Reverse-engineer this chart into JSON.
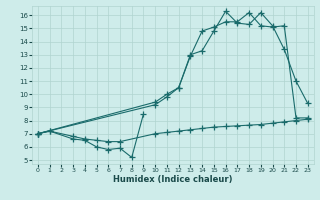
{
  "xlabel": "Humidex (Indice chaleur)",
  "bg_color": "#ceecea",
  "grid_color": "#b0d4d0",
  "line_color": "#1a6b6b",
  "xlim": [
    -0.5,
    23.5
  ],
  "ylim": [
    4.7,
    16.7
  ],
  "yticks": [
    5,
    6,
    7,
    8,
    9,
    10,
    11,
    12,
    13,
    14,
    15,
    16
  ],
  "xticks": [
    0,
    1,
    2,
    3,
    4,
    5,
    6,
    7,
    8,
    9,
    10,
    11,
    12,
    13,
    14,
    15,
    16,
    17,
    18,
    19,
    20,
    21,
    22,
    23
  ],
  "series": [
    [
      0,
      7.0
    ],
    [
      1,
      7.2
    ],
    [
      3,
      6.6
    ],
    [
      4,
      6.5
    ],
    [
      5,
      6.0
    ],
    [
      6,
      5.8
    ],
    [
      7,
      5.9
    ],
    [
      8,
      5.2
    ],
    [
      9,
      8.5
    ]
  ],
  "series2": [
    [
      0,
      7.0
    ],
    [
      1,
      7.2
    ],
    [
      3,
      6.8
    ],
    [
      4,
      6.6
    ],
    [
      5,
      6.5
    ],
    [
      6,
      6.4
    ],
    [
      7,
      6.4
    ],
    [
      10,
      7.0
    ],
    [
      11,
      7.1
    ],
    [
      12,
      7.2
    ],
    [
      13,
      7.3
    ],
    [
      14,
      7.4
    ],
    [
      15,
      7.5
    ],
    [
      16,
      7.55
    ],
    [
      17,
      7.6
    ],
    [
      18,
      7.65
    ],
    [
      19,
      7.7
    ],
    [
      20,
      7.8
    ],
    [
      21,
      7.9
    ],
    [
      22,
      8.0
    ],
    [
      23,
      8.1
    ]
  ],
  "series3": [
    [
      0,
      7.0
    ],
    [
      10,
      9.2
    ],
    [
      11,
      9.8
    ],
    [
      12,
      10.5
    ],
    [
      13,
      13.0
    ],
    [
      14,
      13.3
    ],
    [
      15,
      14.8
    ],
    [
      16,
      16.3
    ],
    [
      17,
      15.4
    ],
    [
      18,
      15.3
    ],
    [
      19,
      16.2
    ],
    [
      20,
      15.2
    ],
    [
      21,
      13.4
    ],
    [
      22,
      11.0
    ],
    [
      23,
      9.3
    ]
  ],
  "series4": [
    [
      0,
      7.0
    ],
    [
      10,
      9.4
    ],
    [
      11,
      10.0
    ],
    [
      12,
      10.5
    ],
    [
      13,
      12.9
    ],
    [
      14,
      14.8
    ],
    [
      15,
      15.1
    ],
    [
      16,
      15.5
    ],
    [
      17,
      15.5
    ],
    [
      18,
      16.2
    ],
    [
      19,
      15.2
    ],
    [
      20,
      15.1
    ],
    [
      21,
      15.2
    ],
    [
      22,
      8.2
    ],
    [
      23,
      8.2
    ]
  ]
}
